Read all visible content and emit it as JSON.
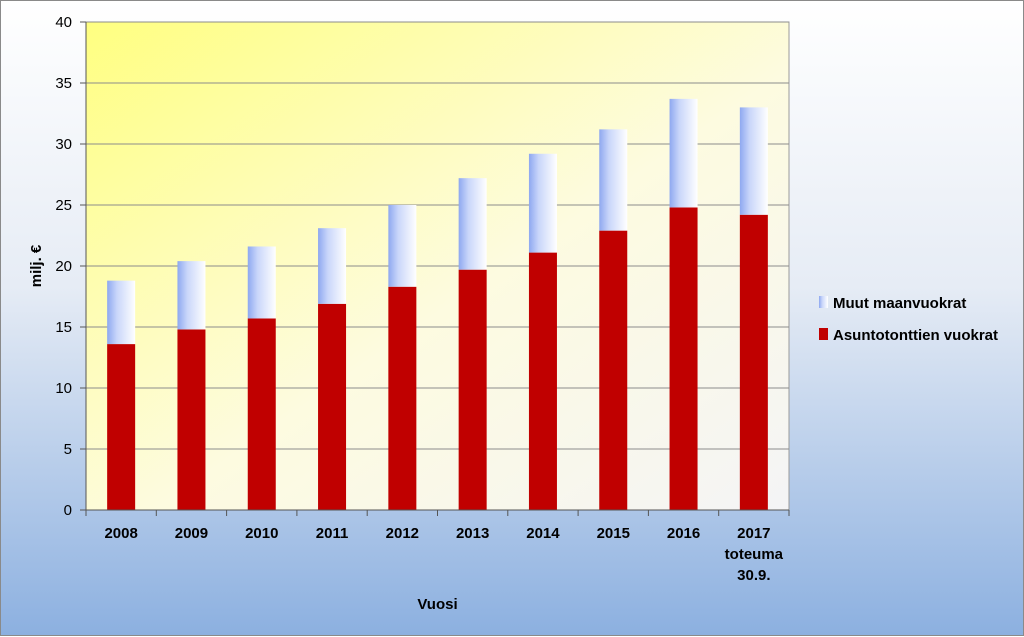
{
  "chart_data": {
    "type": "bar",
    "stacked": true,
    "categories": [
      [
        "2008"
      ],
      [
        "2009"
      ],
      [
        "2010"
      ],
      [
        "2011"
      ],
      [
        "2012"
      ],
      [
        "2013"
      ],
      [
        "2014"
      ],
      [
        "2015"
      ],
      [
        "2016"
      ],
      [
        "2017",
        "toteuma",
        "30.9."
      ]
    ],
    "series": [
      {
        "name": "Asuntotonttien vuokrat",
        "color": "#c00000",
        "values": [
          13.6,
          14.8,
          15.7,
          16.9,
          18.3,
          19.7,
          21.1,
          22.9,
          24.8,
          24.2
        ]
      },
      {
        "name": "Muut maanvuokrat",
        "color": "#a9bdf5",
        "values": [
          5.2,
          5.6,
          5.9,
          6.2,
          6.7,
          7.5,
          8.1,
          8.3,
          8.9,
          8.8
        ]
      }
    ],
    "xlabel": "Vuosi",
    "ylabel": "milj. €",
    "ylim": [
      0,
      40
    ],
    "yticks": [
      0,
      5,
      10,
      15,
      20,
      25,
      30,
      35,
      40
    ],
    "grid": true,
    "legend_position": "right",
    "legend_order": [
      "Muut maanvuokrat",
      "Asuntotonttien vuokrat"
    ]
  }
}
